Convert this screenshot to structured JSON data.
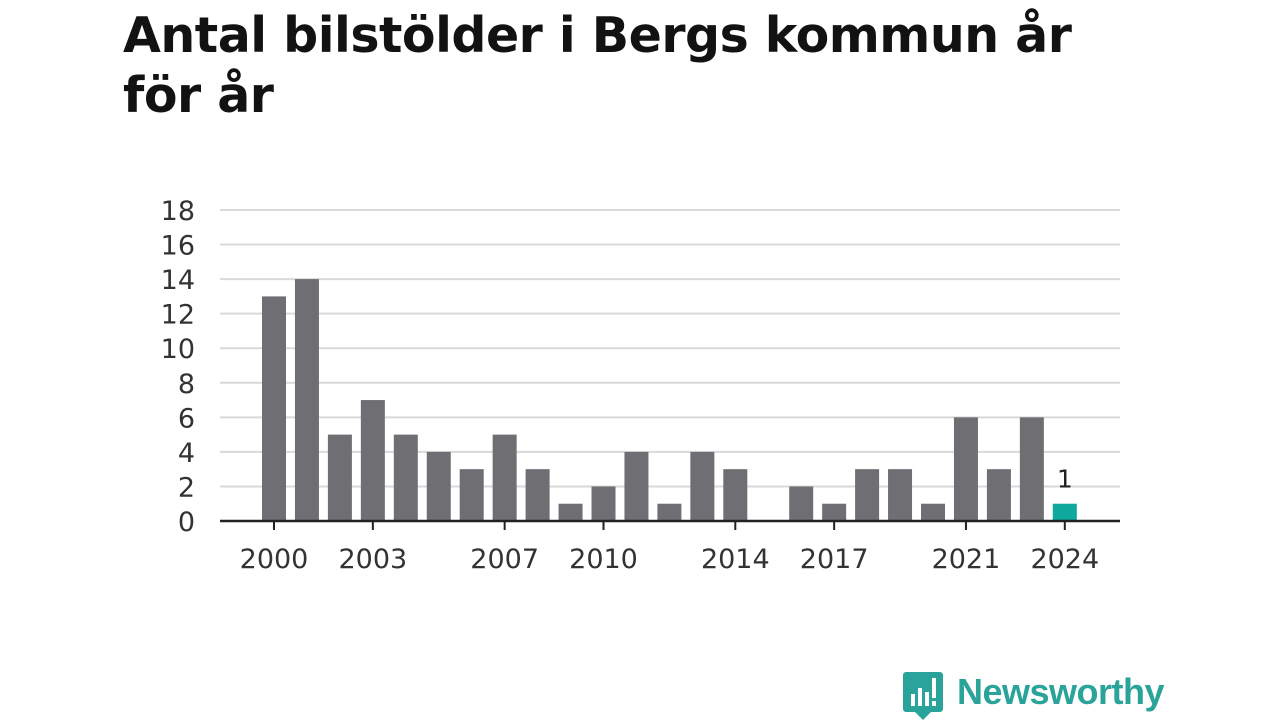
{
  "title": "Antal bilstölder i Bergs kommun år för år",
  "brand": {
    "name": "Newsworthy",
    "color": "#2aa39a",
    "icon": "newsworthy-logo-icon"
  },
  "colors": {
    "bar": "#6f6e73",
    "highlight": "#0fa89c",
    "grid": "#d9d9d9",
    "axis": "#222222"
  },
  "chart_data": {
    "type": "bar",
    "title": "Antal bilstölder i Bergs kommun år för år",
    "xlabel": "",
    "ylabel": "",
    "categories": [
      2000,
      2001,
      2002,
      2003,
      2004,
      2005,
      2006,
      2007,
      2008,
      2009,
      2010,
      2011,
      2012,
      2013,
      2014,
      2015,
      2016,
      2017,
      2018,
      2019,
      2020,
      2021,
      2022,
      2023,
      2024
    ],
    "values": [
      13,
      14,
      5,
      7,
      5,
      4,
      3,
      5,
      3,
      1,
      2,
      4,
      1,
      4,
      3,
      0,
      2,
      1,
      3,
      3,
      1,
      6,
      3,
      6,
      1
    ],
    "highlight_category": 2024,
    "data_labels": [
      {
        "category": 2024,
        "text": "1"
      }
    ],
    "x_tick_labels": [
      "2000",
      "2003",
      "2007",
      "2010",
      "2014",
      "2017",
      "2021",
      "2024"
    ],
    "y_ticks": [
      0,
      2,
      4,
      6,
      8,
      10,
      12,
      14,
      16,
      18
    ],
    "ylim": [
      0,
      18
    ],
    "grid": true,
    "legend": "none"
  }
}
